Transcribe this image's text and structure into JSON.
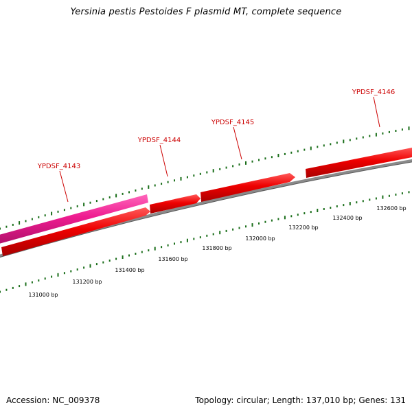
{
  "title": "Yersinia pestis Pestoides F plasmid MT, complete sequence",
  "footer": {
    "accession": "Accession: NC_009378",
    "summary": "Topology: circular; Length: 137,010 bp; Genes: 131"
  },
  "colors": {
    "gene_red": "#ee0000",
    "gene_magenta": "#ee1c90",
    "backbone": "#7f7f7f",
    "tick_green": "#1a6e1a",
    "label_red": "#cc0000"
  },
  "genes": [
    {
      "label": "YPDSF_4143",
      "strand": "reverse",
      "color": "magenta"
    },
    {
      "label": "",
      "strand": "forward",
      "color": "red"
    },
    {
      "label": "YPDSF_4144",
      "strand": "forward",
      "color": "red"
    },
    {
      "label": "YPDSF_4145",
      "strand": "forward",
      "color": "red"
    },
    {
      "label": "YPDSF_4146",
      "strand": "forward",
      "color": "red"
    }
  ],
  "scale_labels": [
    "131000 bp",
    "131200 bp",
    "131400 bp",
    "131600 bp",
    "131800 bp",
    "132000 bp",
    "132200 bp",
    "132400 bp",
    "132600 bp"
  ]
}
